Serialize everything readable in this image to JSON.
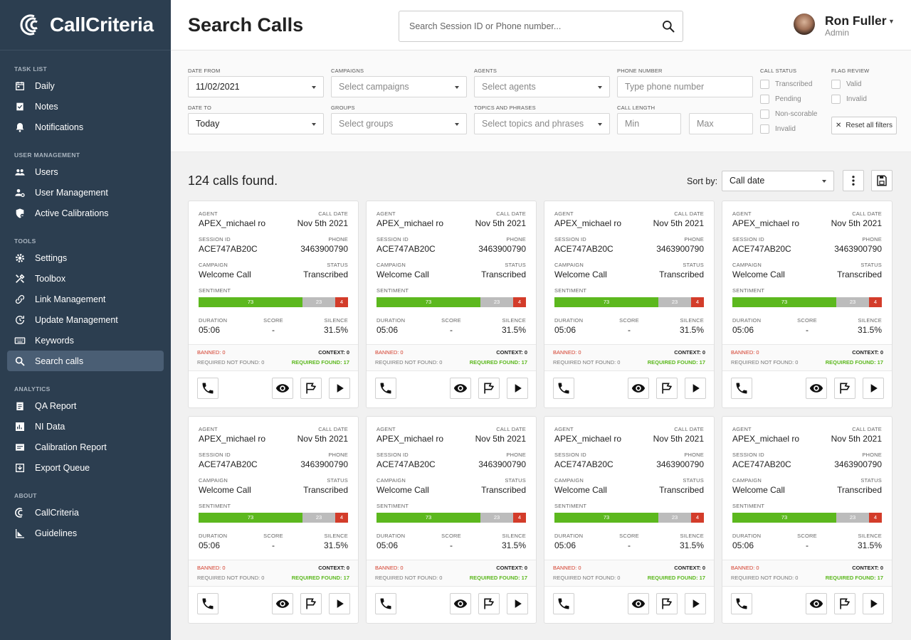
{
  "app": {
    "logo_text": "CallCriteria"
  },
  "sidebar": {
    "sections": [
      {
        "title": "TASK LIST",
        "items": [
          {
            "label": "Daily",
            "icon": "calendar-icon"
          },
          {
            "label": "Notes",
            "icon": "notes-icon"
          },
          {
            "label": "Notifications",
            "icon": "bell-icon"
          }
        ]
      },
      {
        "title": "USER MANAGEMENT",
        "items": [
          {
            "label": "Users",
            "icon": "users-icon"
          },
          {
            "label": "User Management",
            "icon": "user-gear-icon"
          },
          {
            "label": "Active Calibrations",
            "icon": "shield-icon"
          }
        ]
      },
      {
        "title": "TOOLS",
        "items": [
          {
            "label": "Settings",
            "icon": "gear-icon"
          },
          {
            "label": "Toolbox",
            "icon": "tools-icon"
          },
          {
            "label": "Link Management",
            "icon": "link-icon"
          },
          {
            "label": "Update Management",
            "icon": "update-icon"
          },
          {
            "label": "Keywords",
            "icon": "keyboard-icon"
          },
          {
            "label": "Search calls",
            "icon": "search-icon",
            "active": true
          }
        ]
      },
      {
        "title": "ANALYTICS",
        "items": [
          {
            "label": "QA Report",
            "icon": "clipboard-icon"
          },
          {
            "label": "NI Data",
            "icon": "chart-icon"
          },
          {
            "label": "Calibration Report",
            "icon": "report-icon"
          },
          {
            "label": "Export Queue",
            "icon": "export-icon"
          }
        ]
      },
      {
        "title": "ABOUT",
        "items": [
          {
            "label": "CallCriteria",
            "icon": "callcriteria-icon"
          },
          {
            "label": "Guidelines",
            "icon": "guidelines-icon"
          }
        ]
      }
    ]
  },
  "header": {
    "title": "Search Calls",
    "search_placeholder": "Search Session ID or Phone number...",
    "user_name": "Ron Fuller",
    "user_role": "Admin"
  },
  "filters": {
    "date_from_label": "DATE FROM",
    "date_from_value": "11/02/2021",
    "date_to_label": "DATE TO",
    "date_to_value": "Today",
    "campaigns_label": "CAMPAIGNS",
    "campaigns_placeholder": "Select campaigns",
    "groups_label": "GROUPS",
    "groups_placeholder": "Select groups",
    "agents_label": "AGENTS",
    "agents_placeholder": "Select agents",
    "topics_label": "TOPICS AND PHRASES",
    "topics_placeholder": "Select topics and phrases",
    "phone_label": "PHONE NUMBER",
    "phone_placeholder": "Type phone number",
    "length_label": "CALL LENGTH",
    "length_min_placeholder": "Min",
    "length_max_placeholder": "Max",
    "call_status_label": "CALL STATUS",
    "call_status_options": [
      "Transcribed",
      "Pending",
      "Non-scorable",
      "Invalid"
    ],
    "flag_review_label": "FLAG REVIEW",
    "flag_review_options": [
      "Valid",
      "Invalid"
    ],
    "reset_label": "Reset all filters"
  },
  "results": {
    "count_text": "124 calls found.",
    "sort_label": "Sort by:",
    "sort_value": "Call date"
  },
  "card_labels": {
    "agent": "AGENT",
    "call_date": "CALL DATE",
    "session_id": "SESSION ID",
    "phone": "PHONE",
    "campaign": "CAMPAIGN",
    "status": "STATUS",
    "sentiment": "SENTIMENT",
    "duration": "DURATION",
    "score": "SCORE",
    "silence": "SILENCE"
  },
  "cards": [
    {
      "agent": "APEX_michael ro",
      "call_date": "Nov 5th 2021",
      "session_id": "ACE747AB20C",
      "phone": "3463900790",
      "campaign": "Welcome Call",
      "status": "Transcribed",
      "sentiment": {
        "positive": 73,
        "neutral": 23,
        "negative": 4
      },
      "duration": "05:06",
      "score": "-",
      "silence": "31.5%",
      "banned": "BANNED: 0",
      "context": "CONTEXT: 0",
      "required_not_found": "REQUIRED NOT FOUND: 0",
      "required_found": "REQUIRED FOUND: 17"
    },
    {
      "agent": "APEX_michael ro",
      "call_date": "Nov 5th 2021",
      "session_id": "ACE747AB20C",
      "phone": "3463900790",
      "campaign": "Welcome Call",
      "status": "Transcribed",
      "sentiment": {
        "positive": 73,
        "neutral": 23,
        "negative": 4
      },
      "duration": "05:06",
      "score": "-",
      "silence": "31.5%",
      "banned": "BANNED: 0",
      "context": "CONTEXT: 0",
      "required_not_found": "REQUIRED NOT FOUND: 0",
      "required_found": "REQUIRED FOUND: 17"
    },
    {
      "agent": "APEX_michael ro",
      "call_date": "Nov 5th 2021",
      "session_id": "ACE747AB20C",
      "phone": "3463900790",
      "campaign": "Welcome Call",
      "status": "Transcribed",
      "sentiment": {
        "positive": 73,
        "neutral": 23,
        "negative": 4
      },
      "duration": "05:06",
      "score": "-",
      "silence": "31.5%",
      "banned": "BANNED: 0",
      "context": "CONTEXT: 0",
      "required_not_found": "REQUIRED NOT FOUND: 0",
      "required_found": "REQUIRED FOUND: 17"
    },
    {
      "agent": "APEX_michael ro",
      "call_date": "Nov 5th 2021",
      "session_id": "ACE747AB20C",
      "phone": "3463900790",
      "campaign": "Welcome Call",
      "status": "Transcribed",
      "sentiment": {
        "positive": 73,
        "neutral": 23,
        "negative": 4
      },
      "duration": "05:06",
      "score": "-",
      "silence": "31.5%",
      "banned": "BANNED: 0",
      "context": "CONTEXT: 0",
      "required_not_found": "REQUIRED NOT FOUND: 0",
      "required_found": "REQUIRED FOUND: 17"
    },
    {
      "agent": "APEX_michael ro",
      "call_date": "Nov 5th 2021",
      "session_id": "ACE747AB20C",
      "phone": "3463900790",
      "campaign": "Welcome Call",
      "status": "Transcribed",
      "sentiment": {
        "positive": 73,
        "neutral": 23,
        "negative": 4
      },
      "duration": "05:06",
      "score": "-",
      "silence": "31.5%",
      "banned": "BANNED: 0",
      "context": "CONTEXT: 0",
      "required_not_found": "REQUIRED NOT FOUND: 0",
      "required_found": "REQUIRED FOUND: 17"
    },
    {
      "agent": "APEX_michael ro",
      "call_date": "Nov 5th 2021",
      "session_id": "ACE747AB20C",
      "phone": "3463900790",
      "campaign": "Welcome Call",
      "status": "Transcribed",
      "sentiment": {
        "positive": 73,
        "neutral": 23,
        "negative": 4
      },
      "duration": "05:06",
      "score": "-",
      "silence": "31.5%",
      "banned": "BANNED: 0",
      "context": "CONTEXT: 0",
      "required_not_found": "REQUIRED NOT FOUND: 0",
      "required_found": "REQUIRED FOUND: 17"
    },
    {
      "agent": "APEX_michael ro",
      "call_date": "Nov 5th 2021",
      "session_id": "ACE747AB20C",
      "phone": "3463900790",
      "campaign": "Welcome Call",
      "status": "Transcribed",
      "sentiment": {
        "positive": 73,
        "neutral": 23,
        "negative": 4
      },
      "duration": "05:06",
      "score": "-",
      "silence": "31.5%",
      "banned": "BANNED: 0",
      "context": "CONTEXT: 0",
      "required_not_found": "REQUIRED NOT FOUND: 0",
      "required_found": "REQUIRED FOUND: 17"
    },
    {
      "agent": "APEX_michael ro",
      "call_date": "Nov 5th 2021",
      "session_id": "ACE747AB20C",
      "phone": "3463900790",
      "campaign": "Welcome Call",
      "status": "Transcribed",
      "sentiment": {
        "positive": 73,
        "neutral": 23,
        "negative": 4
      },
      "duration": "05:06",
      "score": "-",
      "silence": "31.5%",
      "banned": "BANNED: 0",
      "context": "CONTEXT: 0",
      "required_not_found": "REQUIRED NOT FOUND: 0",
      "required_found": "REQUIRED FOUND: 17"
    }
  ],
  "colors": {
    "sidebar_bg": "#2c3e50",
    "sidebar_active": "#4a5e74",
    "sentiment_positive": "#5cb81e",
    "sentiment_neutral": "#bcbcbc",
    "sentiment_negative": "#d33c2a"
  }
}
